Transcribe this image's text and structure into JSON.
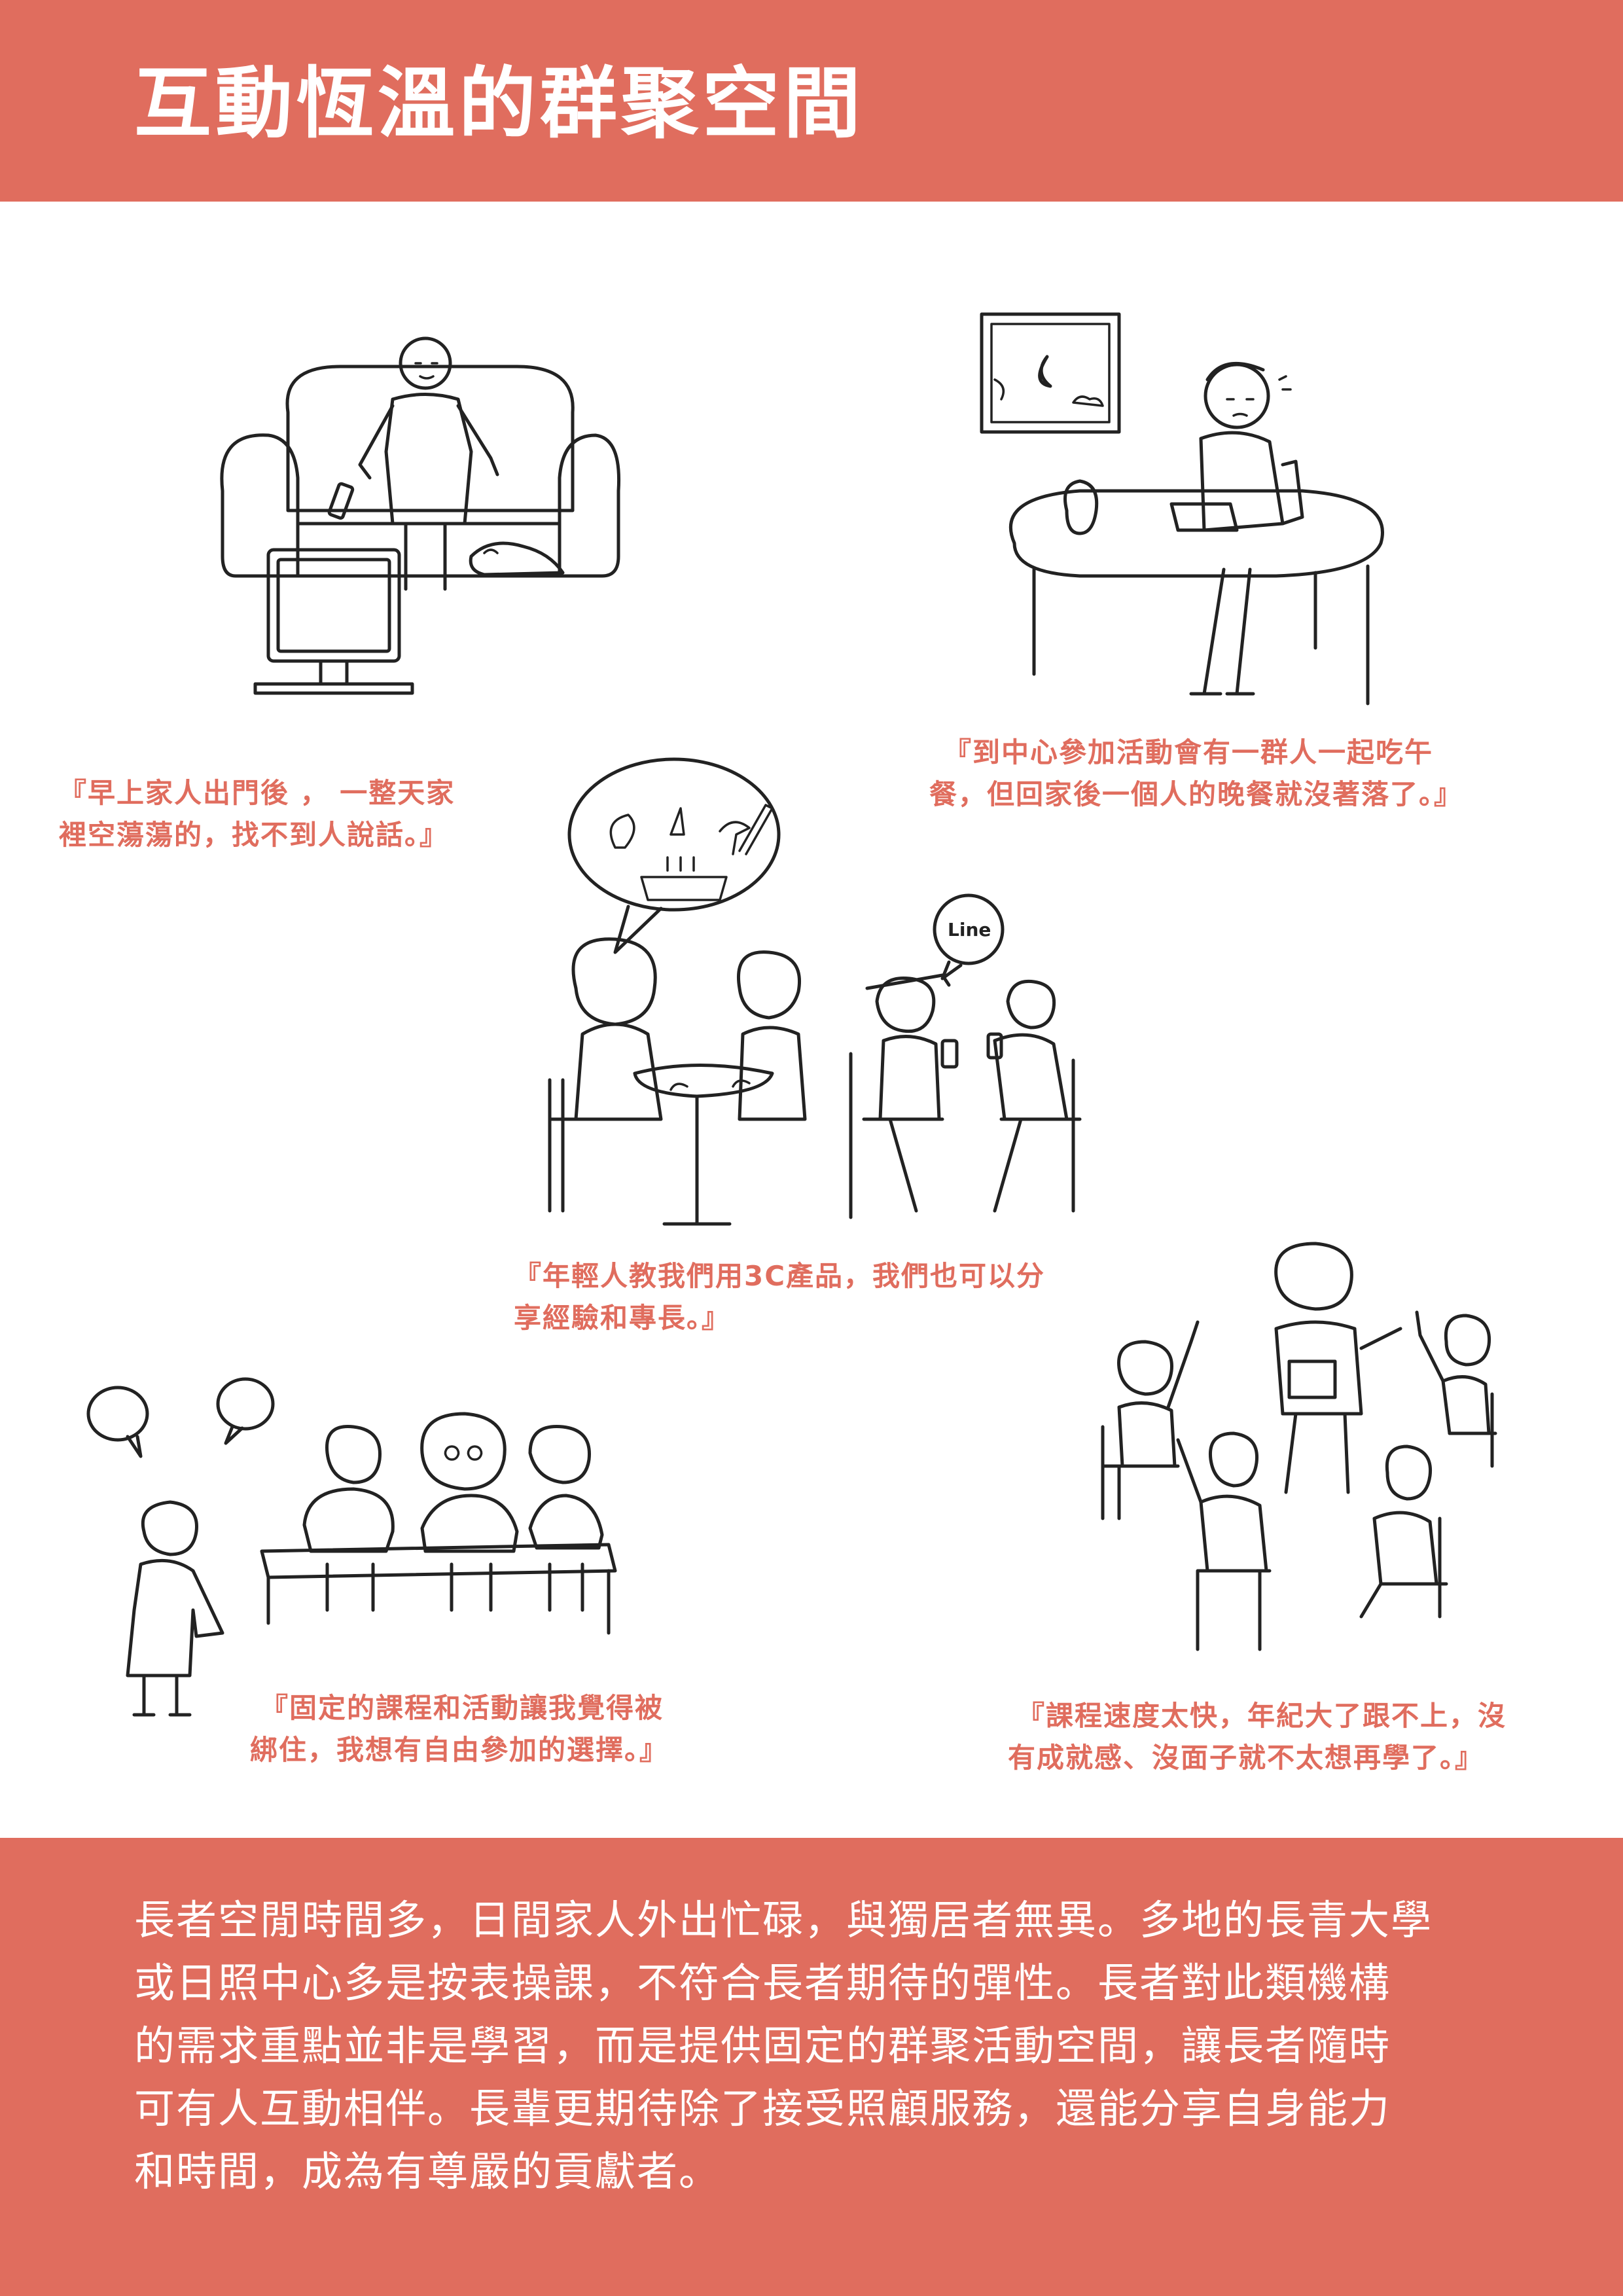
{
  "header": {
    "title": "互動恆溫的群聚空間"
  },
  "captions": {
    "c1": {
      "lines": [
        "『早上家人出門後 ， 一整天家",
        "裡空蕩蕩的，找不到人說話。』"
      ]
    },
    "c2": {
      "lines": [
        "『到中心參加活動會有一群人一起吃午",
        "餐，但回家後一個人的晚餐就沒著落了。』"
      ]
    },
    "c3": {
      "lines": [
        "『年輕人教我們用3C產品，我們也可以分",
        "享經驗和專長。』"
      ]
    },
    "c4": {
      "lines": [
        "『固定的課程和活動讓我覺得被",
        "綁住，我想有自由參加的選擇。』"
      ]
    },
    "c5": {
      "lines": [
        "『課程速度太快，年紀大了跟不上，沒",
        "有成就感、沒面子就不太想再學了。』"
      ]
    }
  },
  "illustrations": {
    "phone_bubble_text": "Line"
  },
  "body": {
    "lines": [
      "長者空閒時間多，日間家人外出忙碌，與獨居者無異。多地的長青大學",
      "或日照中心多是按表操課，不符合長者期待的彈性。長者對此類機構",
      "的需求重點並非是學習，而是提供固定的群聚活動空間，讓長者隨時",
      "可有人互動相伴。長輩更期待除了接受照顧服務，還能分享自身能力",
      "和時間，成為有尊嚴的貢獻者。"
    ]
  },
  "colors": {
    "accent": "#e06d5e",
    "ink": "#222222",
    "paper": "#ffffff"
  }
}
